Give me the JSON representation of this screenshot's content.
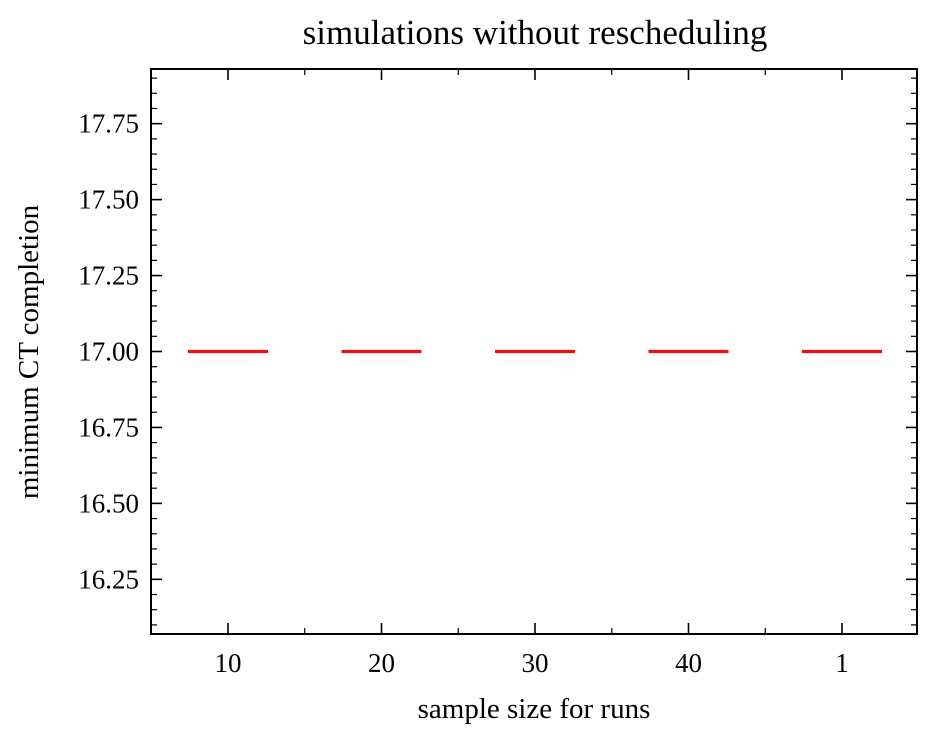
{
  "chart_data": {
    "type": "box",
    "title": "simulations without rescheduling",
    "xlabel": "sample size for runs",
    "ylabel": "minimum CT completion",
    "categories": [
      "10",
      "20",
      "30",
      "40",
      "1"
    ],
    "series": [
      {
        "values": [
          17.0,
          17.0,
          17.0,
          17.0,
          17.0
        ]
      }
    ],
    "ylim": [
      16.07,
      17.93
    ],
    "yticks": [
      "16.25",
      "16.50",
      "16.75",
      "17.00",
      "17.25",
      "17.50",
      "17.75"
    ],
    "ytick_values": [
      16.25,
      16.5,
      16.75,
      17.0,
      17.25,
      17.5,
      17.75
    ],
    "y_minor_step": 0.05,
    "grid": false,
    "median_color": "#e8130f"
  }
}
